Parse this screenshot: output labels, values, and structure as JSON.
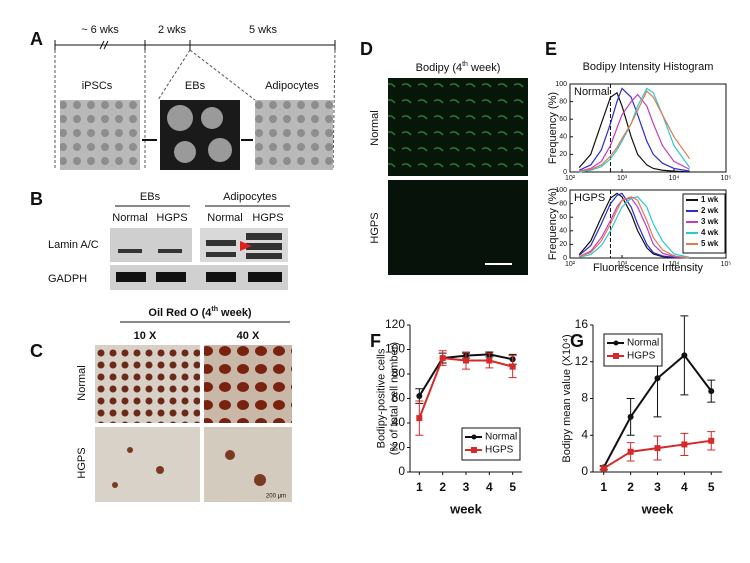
{
  "panels": {
    "A": {
      "label": "A",
      "durations": [
        "~ 6 wks",
        "2 wks",
        "5 wks"
      ],
      "stages": [
        "iPSCs",
        "EBs",
        "Adipocytes"
      ]
    },
    "B": {
      "label": "B",
      "groups": [
        "EBs",
        "Adipocytes"
      ],
      "lanes": [
        "Normal",
        "HGPS",
        "Normal",
        "HGPS"
      ],
      "bands": [
        "Lamin A/C",
        "GADPH"
      ]
    },
    "C": {
      "label": "C",
      "title": [
        "Oil Red O (4",
        "th",
        " week)"
      ],
      "magnifications": [
        "10 X",
        "40 X"
      ],
      "rows": [
        "Normal",
        "HGPS"
      ],
      "scale_bar": "200 μm"
    },
    "D": {
      "label": "D",
      "title": [
        "Bodipy (4",
        "th",
        " week)"
      ],
      "rows": [
        "Normal",
        "HGPS"
      ]
    }
  },
  "chart_data": [
    {
      "type": "histogram-lines",
      "panel": "E",
      "title": "Bodipy Intensity Histogram",
      "xlabel": "Fluorescence Intensity",
      "ylabel": "Frequency (%)",
      "log_x": true,
      "xlim": [
        100,
        100000
      ],
      "xticks": [
        {
          "value": 100,
          "label": "10²"
        },
        {
          "value": 1000,
          "label": "10³"
        },
        {
          "value": 10000,
          "label": "10⁴"
        },
        {
          "value": 100000,
          "label": "10⁵"
        }
      ],
      "ylim": [
        0,
        100
      ],
      "yticks": [
        0,
        20,
        40,
        60,
        80,
        100
      ],
      "vline": 600,
      "x": [
        150,
        250,
        400,
        600,
        800,
        1000,
        1500,
        2000,
        3000,
        4000,
        6000,
        10000,
        20000
      ],
      "legend": [
        {
          "name": "1 wk",
          "color": "#111111"
        },
        {
          "name": "2 wk",
          "color": "#2b2bd0"
        },
        {
          "name": "3 wk",
          "color": "#c23bc2"
        },
        {
          "name": "4 wk",
          "color": "#2cc8d0"
        },
        {
          "name": "5 wk",
          "color": "#e07a50"
        }
      ],
      "subplots": [
        {
          "label": "Normal",
          "series": [
            {
              "values": [
                5,
                20,
                55,
                85,
                90,
                75,
                40,
                20,
                8,
                4,
                2,
                1,
                0
              ]
            },
            {
              "values": [
                2,
                8,
                25,
                55,
                80,
                95,
                85,
                65,
                35,
                20,
                10,
                4,
                1
              ]
            },
            {
              "values": [
                1,
                4,
                12,
                30,
                50,
                65,
                80,
                88,
                75,
                55,
                30,
                12,
                3
              ]
            },
            {
              "values": [
                0,
                2,
                6,
                15,
                25,
                35,
                55,
                75,
                95,
                90,
                65,
                30,
                5
              ]
            },
            {
              "values": [
                1,
                3,
                8,
                18,
                28,
                38,
                55,
                70,
                92,
                85,
                65,
                40,
                15
              ]
            }
          ]
        },
        {
          "label": "HGPS",
          "series": [
            {
              "values": [
                5,
                25,
                60,
                88,
                95,
                90,
                65,
                40,
                15,
                6,
                2,
                1,
                0
              ]
            },
            {
              "values": [
                4,
                18,
                50,
                80,
                92,
                95,
                75,
                50,
                20,
                8,
                3,
                1,
                0
              ]
            },
            {
              "values": [
                2,
                10,
                30,
                55,
                75,
                85,
                88,
                75,
                45,
                20,
                7,
                2,
                0
              ]
            },
            {
              "values": [
                1,
                5,
                18,
                40,
                60,
                75,
                88,
                90,
                75,
                50,
                25,
                6,
                1
              ]
            },
            {
              "values": [
                2,
                8,
                25,
                50,
                70,
                85,
                90,
                85,
                55,
                30,
                12,
                3,
                0
              ]
            }
          ]
        }
      ]
    },
    {
      "type": "line",
      "panel": "F",
      "xlabel": "week",
      "ylabel": [
        "Bodipy-positive cells",
        "(% of total cell number)"
      ],
      "x": [
        1,
        2,
        3,
        4,
        5
      ],
      "xlim": [
        0.6,
        5.4
      ],
      "xticks": [
        1,
        2,
        3,
        4,
        5
      ],
      "ylim": [
        0,
        120
      ],
      "yticks": [
        0,
        20,
        40,
        60,
        80,
        100,
        120
      ],
      "series": [
        {
          "name": "Normal",
          "color": "#111111",
          "marker": "circle",
          "values": [
            62,
            93,
            95,
            96,
            92
          ],
          "errors": [
            6,
            4,
            2,
            2,
            4
          ]
        },
        {
          "name": "HGPS",
          "color": "#d42a2a",
          "marker": "square",
          "values": [
            44,
            93,
            91,
            91,
            86
          ],
          "errors": [
            14,
            6,
            7,
            6,
            9
          ]
        }
      ]
    },
    {
      "type": "line",
      "panel": "G",
      "xlabel": "week",
      "ylabel": [
        "Bodipy mean value (X10⁴)"
      ],
      "x": [
        1,
        2,
        3,
        4,
        5
      ],
      "xlim": [
        0.6,
        5.4
      ],
      "xticks": [
        1,
        2,
        3,
        4,
        5
      ],
      "ylim": [
        0,
        16
      ],
      "yticks": [
        0,
        4,
        8,
        12,
        16
      ],
      "series": [
        {
          "name": "Normal",
          "color": "#111111",
          "marker": "circle",
          "values": [
            0.5,
            6,
            10.2,
            12.7,
            8.8
          ],
          "errors": [
            0.2,
            2,
            4.2,
            4.3,
            1.2
          ]
        },
        {
          "name": "HGPS",
          "color": "#d42a2a",
          "marker": "square",
          "values": [
            0.4,
            2.2,
            2.6,
            3,
            3.4
          ],
          "errors": [
            0.2,
            1,
            1.3,
            1.2,
            1
          ]
        }
      ]
    }
  ]
}
